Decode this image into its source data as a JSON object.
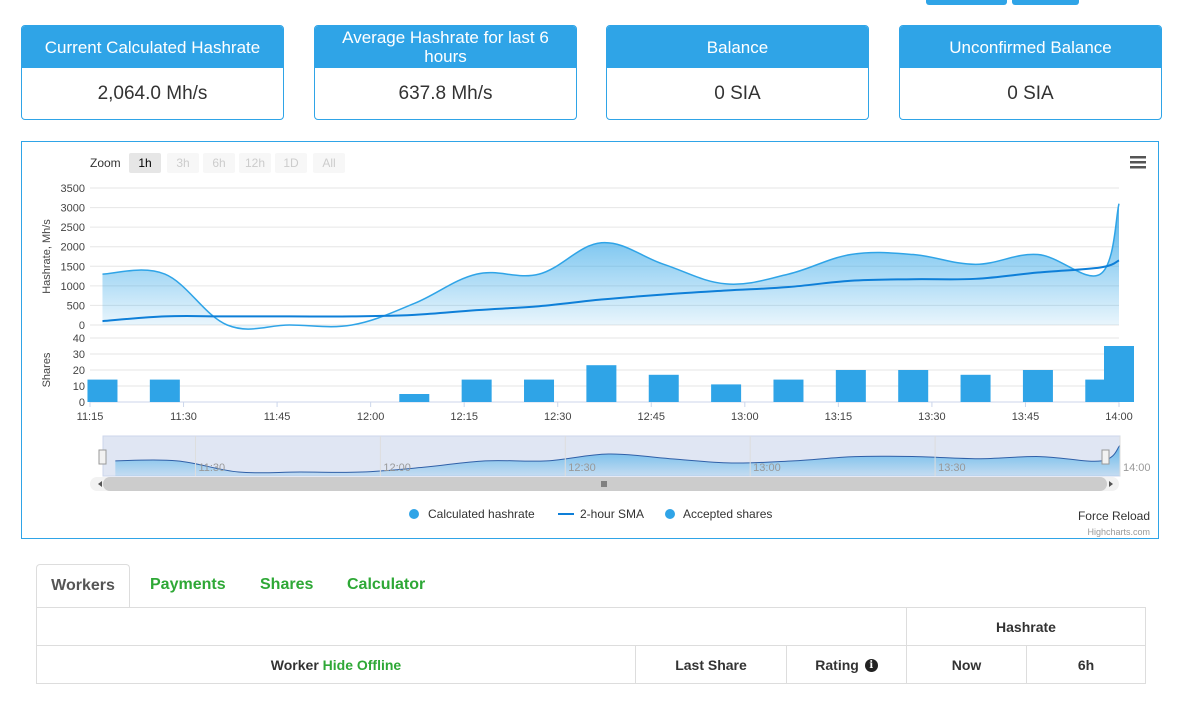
{
  "cards": [
    {
      "title": "Current Calculated Hashrate",
      "value": "2,064.0 Mh/s"
    },
    {
      "title": "Average Hashrate for last 6 hours",
      "value": "637.8 Mh/s"
    },
    {
      "title": "Balance",
      "value": "0 SIA"
    },
    {
      "title": "Unconfirmed Balance",
      "value": "0 SIA"
    }
  ],
  "zoom": {
    "label": "Zoom",
    "options": [
      "1h",
      "3h",
      "6h",
      "12h",
      "1D",
      "All"
    ],
    "active": "1h"
  },
  "chart_data": {
    "type": "area",
    "x_labels": [
      "11:15",
      "11:30",
      "11:45",
      "12:00",
      "12:15",
      "12:30",
      "12:45",
      "13:00",
      "13:15",
      "13:30",
      "13:45",
      "14:00"
    ],
    "x_range_minutes": [
      675,
      840
    ],
    "hashrate": {
      "ylabel": "Hashrate, Mh/s",
      "yticks": [
        0,
        500,
        1000,
        1500,
        2000,
        2500,
        3000,
        3500
      ],
      "ylim": [
        0,
        3500
      ],
      "series": [
        {
          "name": "Calculated hashrate",
          "color": "#2fa4e7",
          "type": "area",
          "x": [
            677,
            687,
            697,
            707,
            717,
            727,
            737,
            747,
            757,
            767,
            777,
            787,
            797,
            807,
            817,
            827,
            837
          ],
          "y": [
            1300,
            1300,
            0,
            0,
            0,
            550,
            1300,
            1300,
            2100,
            1550,
            1050,
            1300,
            1800,
            1800,
            1550,
            1800,
            1300
          ]
        },
        {
          "name": "2-hour SMA",
          "color": "#0e7fd8",
          "type": "line",
          "x": [
            677,
            687,
            697,
            707,
            717,
            727,
            737,
            747,
            757,
            767,
            777,
            787,
            797,
            807,
            817,
            827,
            837
          ],
          "y": [
            100,
            220,
            220,
            220,
            220,
            260,
            380,
            480,
            650,
            780,
            880,
            970,
            1130,
            1170,
            1180,
            1340,
            1470
          ]
        }
      ],
      "last_point": {
        "x": 840,
        "y_hashrate": 3100,
        "y_sma": 1650
      }
    },
    "shares": {
      "ylabel": "Shares",
      "yticks": [
        0,
        10,
        20,
        30,
        40
      ],
      "ylim": [
        0,
        40
      ],
      "series": [
        {
          "name": "Accepted shares",
          "color": "#2fa4e7",
          "type": "bar",
          "x": [
            677,
            687,
            727,
            737,
            747,
            757,
            767,
            777,
            787,
            797,
            807,
            817,
            827,
            837,
            840
          ],
          "values": [
            14,
            14,
            5,
            14,
            14,
            23,
            17,
            11,
            14,
            20,
            20,
            17,
            20,
            14,
            35
          ]
        }
      ]
    },
    "navigator_labels": [
      "11:30",
      "12:00",
      "12:30",
      "13:00",
      "13:30",
      "14:00"
    ],
    "legend": [
      "Calculated hashrate",
      "2-hour SMA",
      "Accepted shares"
    ]
  },
  "chart_footer": {
    "force_reload": "Force Reload",
    "credit": "Highcharts.com"
  },
  "tabs": [
    "Workers",
    "Payments",
    "Shares",
    "Calculator"
  ],
  "table": {
    "hashrate_header": "Hashrate",
    "worker_label": "Worker",
    "hide_offline": "Hide Offline",
    "last_share": "Last Share",
    "rating": "Rating",
    "now": "Now",
    "six_h": "6h"
  }
}
